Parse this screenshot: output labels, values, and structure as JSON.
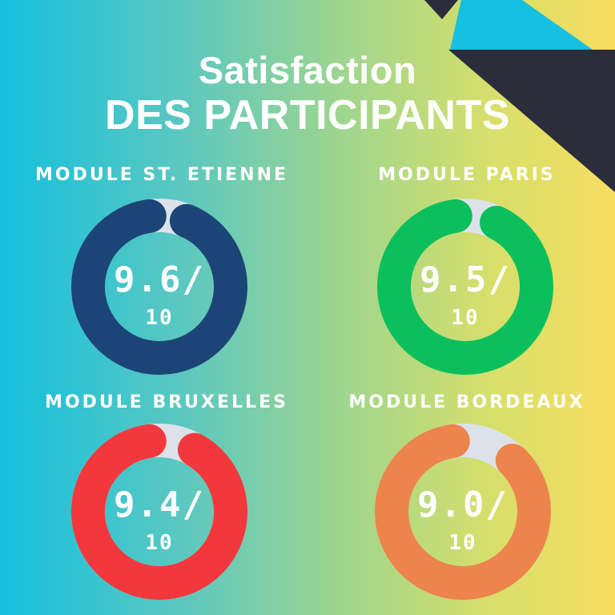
{
  "header": {
    "title_line1": "Satisfaction",
    "title_line2": "DES PARTICIPANTS"
  },
  "colors": {
    "track": "#dde2ea",
    "accent_dark": "#2b2d3a",
    "accent_cyan": "#15c0e0"
  },
  "chart_data": {
    "type": "donut",
    "max": 10,
    "modules": [
      {
        "name": "MODULE ST. ETIENNE",
        "value": 9.6,
        "score_text": "9.6/",
        "denominator_text": "10",
        "color": "#1b4576"
      },
      {
        "name": "MODULE PARIS",
        "value": 9.5,
        "score_text": "9.5/",
        "denominator_text": "10",
        "color": "#0bbf5c"
      },
      {
        "name": "MODULE BRUXELLES",
        "value": 9.4,
        "score_text": "9.4/",
        "denominator_text": "10",
        "color": "#f2383c"
      },
      {
        "name": "MODULE BORDEAUX",
        "value": 9.0,
        "score_text": "9.0/",
        "denominator_text": "10",
        "color": "#ec844c"
      }
    ]
  }
}
